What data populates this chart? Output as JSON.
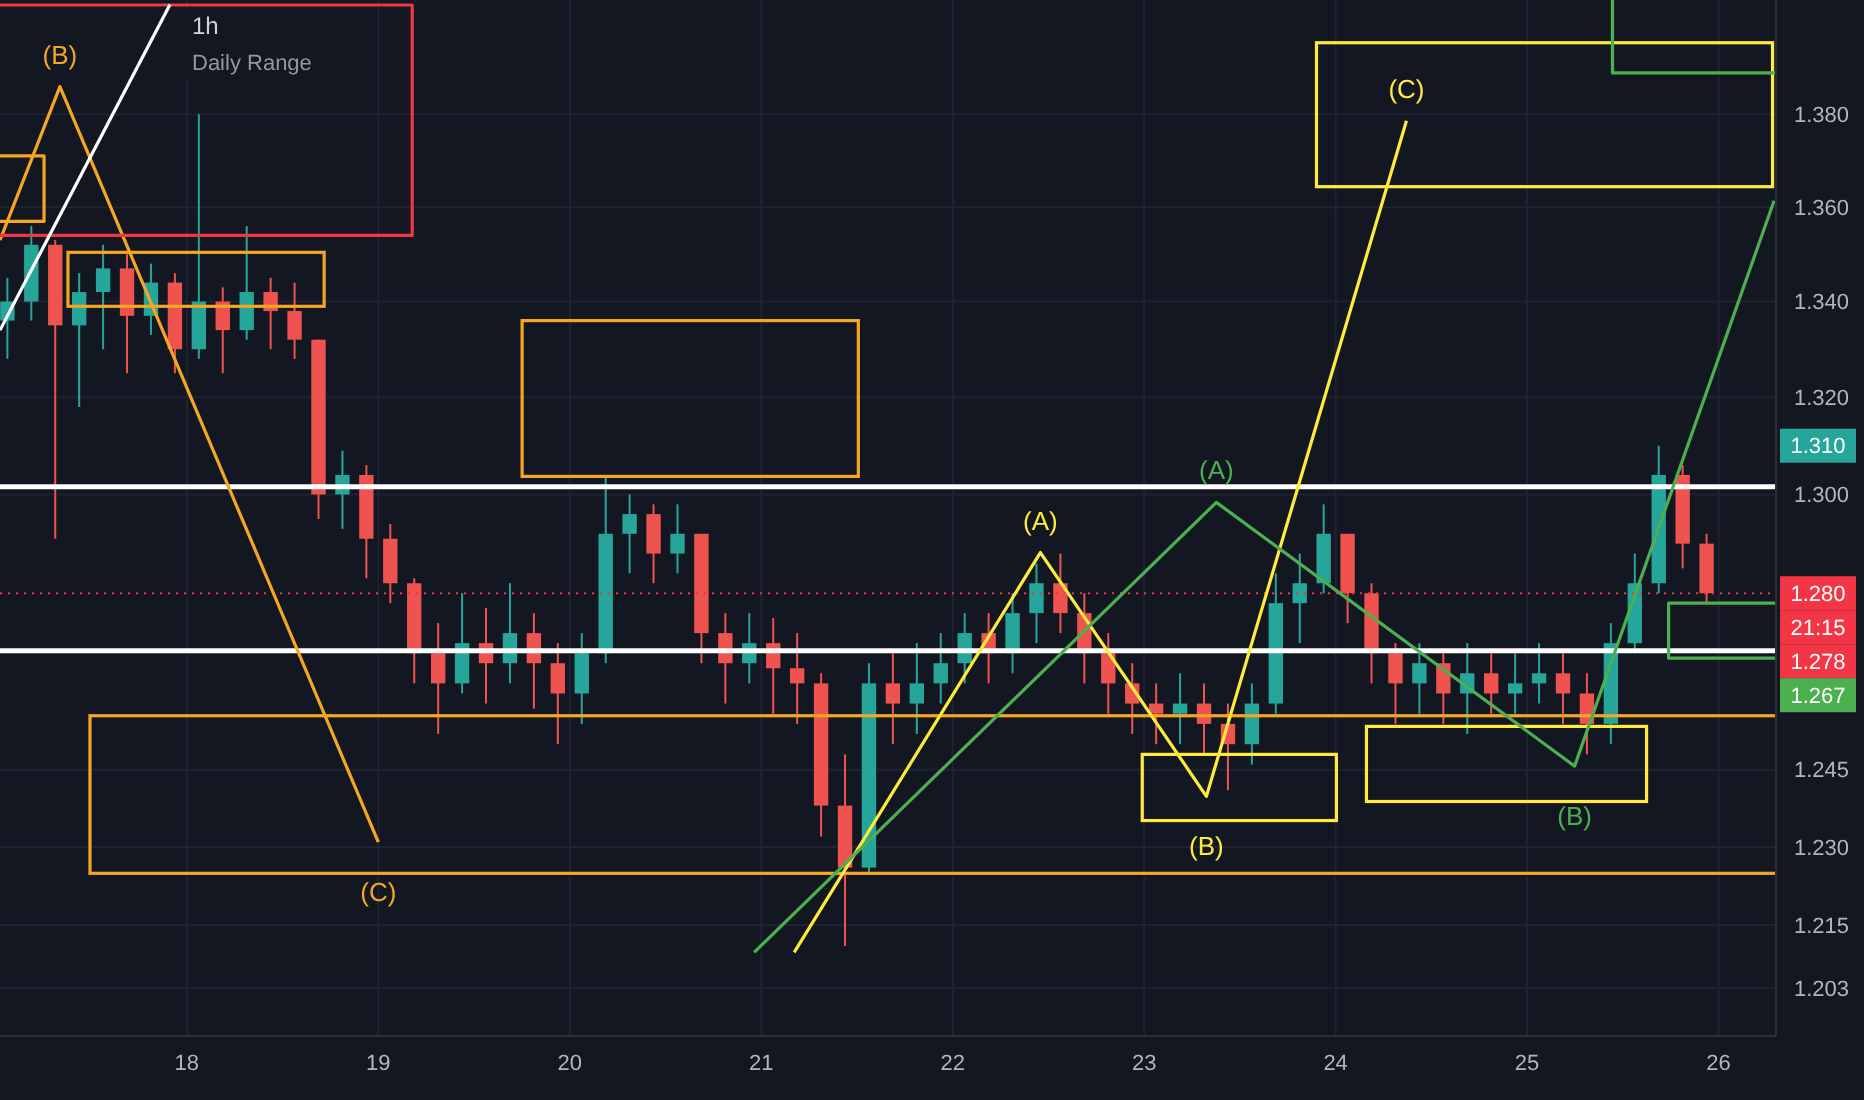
{
  "chart_data": {
    "type": "candlestick",
    "title": "1h",
    "subtitle": "Daily Range",
    "x": [
      17.0625,
      17.1875,
      17.3125,
      17.4375,
      17.5625,
      17.6875,
      17.8125,
      17.9375,
      18.0625,
      18.1875,
      18.3125,
      18.4375,
      18.5625,
      18.6875,
      18.8125,
      18.9375,
      19.0625,
      19.1875,
      19.3125,
      19.4375,
      19.5625,
      19.6875,
      19.8125,
      19.9375,
      20.0625,
      20.1875,
      20.3125,
      20.4375,
      20.5625,
      20.6875,
      20.8125,
      20.9375,
      21.0625,
      21.1875,
      21.3125,
      21.4375,
      21.5625,
      21.6875,
      21.8125,
      21.9375,
      22.0625,
      22.1875,
      22.3125,
      22.4375,
      22.5625,
      22.6875,
      22.8125,
      22.9375,
      23.0625,
      23.1875,
      23.3125,
      23.4375,
      23.5625,
      23.6875,
      23.8125,
      23.9375,
      24.0625,
      24.1875,
      24.3125,
      24.4375,
      24.5625,
      24.6875,
      24.8125,
      24.9375,
      25.0625,
      25.1875,
      25.3125,
      25.4375,
      25.5625,
      25.6875,
      25.8125,
      25.9375
    ],
    "ohlc": [
      [
        1.336,
        1.345,
        1.328,
        1.34
      ],
      [
        1.34,
        1.356,
        1.336,
        1.352
      ],
      [
        1.352,
        1.353,
        1.291,
        1.335
      ],
      [
        1.335,
        1.346,
        1.318,
        1.342
      ],
      [
        1.342,
        1.352,
        1.33,
        1.347
      ],
      [
        1.347,
        1.35,
        1.325,
        1.337
      ],
      [
        1.337,
        1.348,
        1.333,
        1.344
      ],
      [
        1.344,
        1.346,
        1.325,
        1.33
      ],
      [
        1.33,
        1.38,
        1.328,
        1.34
      ],
      [
        1.34,
        1.343,
        1.325,
        1.334
      ],
      [
        1.334,
        1.356,
        1.332,
        1.342
      ],
      [
        1.342,
        1.345,
        1.33,
        1.338
      ],
      [
        1.338,
        1.344,
        1.328,
        1.332
      ],
      [
        1.332,
        1.332,
        1.295,
        1.3
      ],
      [
        1.3,
        1.309,
        1.293,
        1.304
      ],
      [
        1.304,
        1.306,
        1.283,
        1.291
      ],
      [
        1.291,
        1.294,
        1.278,
        1.282
      ],
      [
        1.282,
        1.283,
        1.262,
        1.268
      ],
      [
        1.268,
        1.274,
        1.252,
        1.262
      ],
      [
        1.262,
        1.28,
        1.26,
        1.27
      ],
      [
        1.27,
        1.277,
        1.258,
        1.266
      ],
      [
        1.266,
        1.282,
        1.262,
        1.272
      ],
      [
        1.272,
        1.276,
        1.257,
        1.266
      ],
      [
        1.266,
        1.27,
        1.25,
        1.26
      ],
      [
        1.26,
        1.272,
        1.254,
        1.268
      ],
      [
        1.268,
        1.304,
        1.266,
        1.292
      ],
      [
        1.292,
        1.3,
        1.284,
        1.296
      ],
      [
        1.296,
        1.298,
        1.282,
        1.288
      ],
      [
        1.288,
        1.298,
        1.284,
        1.292
      ],
      [
        1.292,
        1.292,
        1.266,
        1.272
      ],
      [
        1.272,
        1.276,
        1.258,
        1.266
      ],
      [
        1.266,
        1.276,
        1.262,
        1.27
      ],
      [
        1.27,
        1.275,
        1.256,
        1.265
      ],
      [
        1.265,
        1.272,
        1.254,
        1.262
      ],
      [
        1.262,
        1.264,
        1.232,
        1.238
      ],
      [
        1.238,
        1.248,
        1.211,
        1.226
      ],
      [
        1.226,
        1.266,
        1.225,
        1.262
      ],
      [
        1.262,
        1.268,
        1.25,
        1.258
      ],
      [
        1.258,
        1.27,
        1.252,
        1.262
      ],
      [
        1.262,
        1.272,
        1.258,
        1.266
      ],
      [
        1.266,
        1.276,
        1.262,
        1.272
      ],
      [
        1.272,
        1.276,
        1.262,
        1.268
      ],
      [
        1.268,
        1.28,
        1.264,
        1.276
      ],
      [
        1.276,
        1.286,
        1.27,
        1.282
      ],
      [
        1.282,
        1.288,
        1.272,
        1.276
      ],
      [
        1.276,
        1.28,
        1.262,
        1.268
      ],
      [
        1.268,
        1.272,
        1.256,
        1.262
      ],
      [
        1.262,
        1.266,
        1.252,
        1.258
      ],
      [
        1.258,
        1.262,
        1.25,
        1.256
      ],
      [
        1.256,
        1.264,
        1.25,
        1.258
      ],
      [
        1.258,
        1.262,
        1.248,
        1.254
      ],
      [
        1.254,
        1.258,
        1.241,
        1.25
      ],
      [
        1.25,
        1.262,
        1.246,
        1.258
      ],
      [
        1.258,
        1.284,
        1.256,
        1.278
      ],
      [
        1.278,
        1.288,
        1.27,
        1.282
      ],
      [
        1.282,
        1.298,
        1.28,
        1.292
      ],
      [
        1.292,
        1.292,
        1.274,
        1.28
      ],
      [
        1.28,
        1.282,
        1.262,
        1.268
      ],
      [
        1.268,
        1.27,
        1.254,
        1.262
      ],
      [
        1.262,
        1.27,
        1.256,
        1.266
      ],
      [
        1.266,
        1.268,
        1.254,
        1.26
      ],
      [
        1.26,
        1.27,
        1.252,
        1.264
      ],
      [
        1.264,
        1.268,
        1.256,
        1.26
      ],
      [
        1.26,
        1.268,
        1.256,
        1.262
      ],
      [
        1.262,
        1.27,
        1.258,
        1.264
      ],
      [
        1.264,
        1.268,
        1.254,
        1.26
      ],
      [
        1.26,
        1.264,
        1.248,
        1.254
      ],
      [
        1.254,
        1.274,
        1.25,
        1.27
      ],
      [
        1.27,
        1.288,
        1.268,
        1.282
      ],
      [
        1.282,
        1.31,
        1.28,
        1.304
      ],
      [
        1.304,
        1.306,
        1.285,
        1.29
      ],
      [
        1.29,
        1.292,
        1.278,
        1.28
      ]
    ],
    "xlim": [
      17.024,
      26.3
    ],
    "xticks": [
      18,
      19,
      20,
      21,
      22,
      23,
      24,
      25,
      26
    ],
    "ylim": [
      1.194,
      1.405
    ],
    "log": "y",
    "yticks": [
      {
        "value": 1.203,
        "label": "1.203"
      },
      {
        "value": 1.215,
        "label": "1.215"
      },
      {
        "value": 1.23,
        "label": "1.230"
      },
      {
        "value": 1.245,
        "label": "1.245"
      },
      {
        "value": 1.3,
        "label": "1.300"
      },
      {
        "value": 1.32,
        "label": "1.320"
      },
      {
        "value": 1.34,
        "label": "1.340"
      },
      {
        "value": 1.36,
        "label": "1.360"
      },
      {
        "value": 1.38,
        "label": "1.380"
      }
    ],
    "grid": true,
    "series": [
      {
        "type": "line",
        "color": "#f5a623",
        "x": [
          17.024,
          17.337,
          19.0
        ],
        "values": [
          1.353,
          1.386,
          1.2309
        ]
      },
      {
        "type": "line",
        "color": "#f5a623",
        "x": [
          17.024,
          17.254,
          17.254,
          17.024
        ],
        "values": [
          1.371,
          1.371,
          1.357,
          1.357
        ]
      },
      {
        "type": "line",
        "color": "#f23645",
        "x": [
          17.024,
          19.177,
          19.177,
          17.024
        ],
        "values": [
          1.4039,
          1.4039,
          1.354,
          1.354
        ]
      },
      {
        "type": "line",
        "color": "#ffffff",
        "x": [
          17.024,
          17.912
        ],
        "values": [
          1.334,
          1.404
        ]
      },
      {
        "type": "line",
        "color": "#ffeb3b",
        "x": [
          21.172,
          22.458,
          23.325,
          24.37
        ],
        "values": [
          1.2098,
          1.2882,
          1.2398,
          1.3786
        ]
      },
      {
        "type": "line",
        "color": "#4caf50",
        "x": [
          20.963,
          23.377,
          25.248,
          26.29
        ],
        "values": [
          1.2098,
          1.2984,
          1.2457,
          1.3614
        ]
      },
      {
        "type": "line",
        "color": "#4caf50",
        "x": [
          26.3,
          25.739,
          25.739,
          26.3
        ],
        "values": [
          1.278,
          1.278,
          1.267,
          1.267
        ]
      },
      {
        "type": "line",
        "color": "#4caf50",
        "x": [
          25.446,
          25.446,
          26.3
        ],
        "values": [
          1.405,
          1.389,
          1.389
        ]
      }
    ],
    "ref_lines": [
      {
        "axis": "y",
        "value": 1.3016,
        "color": "#ffffff",
        "line_style": "solid"
      },
      {
        "axis": "y",
        "value": 1.2685,
        "color": "#ffffff",
        "line_style": "solid"
      },
      {
        "axis": "y",
        "value": 1.28,
        "label": "1.280",
        "color": "#f23645",
        "line_style": "dotted"
      }
    ],
    "annotations": [
      {
        "text": "(B)",
        "x": 17.337,
        "y": 1.386
      },
      {
        "text": "(C)",
        "x": 19.0,
        "y": 1.2309
      },
      {
        "text": "(A)",
        "x": 22.458,
        "y": 1.2882
      },
      {
        "text": "(B)",
        "x": 23.325,
        "y": 1.2398
      },
      {
        "text": "(C)",
        "x": 24.37,
        "y": 1.3786
      },
      {
        "text": "(A)",
        "x": 23.377,
        "y": 1.2984
      },
      {
        "text": "(B)",
        "x": 25.248,
        "y": 1.2457
      },
      {
        "text": "1.310",
        "y": 1.31
      },
      "21:15",
      "1.278",
      {
        "text": "1.267",
        "y": 1.267
      }
    ]
  }
}
